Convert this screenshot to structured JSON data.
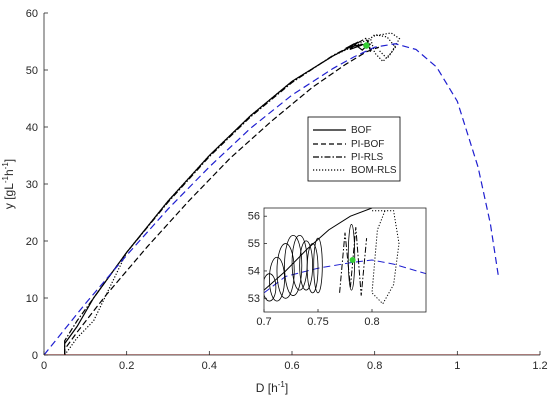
{
  "chart_data": [
    {
      "type": "line",
      "role": "main",
      "xlabel": "D [h",
      "xlabel_sup": "-1",
      "xlabel_end": "]",
      "ylabel_parts": [
        "y [gL",
        "-1",
        "h",
        "-1",
        "]"
      ],
      "xlim": [
        0,
        1.2
      ],
      "ylim": [
        0,
        60
      ],
      "xticks": [
        0,
        0.2,
        0.4,
        0.6,
        0.8,
        1,
        1.2
      ],
      "xtick_labels": [
        "0",
        "0.2",
        "0.4",
        "0.6",
        "0.8",
        "1",
        "1.2"
      ],
      "yticks": [
        0,
        10,
        20,
        30,
        40,
        50,
        60
      ],
      "ytick_labels": [
        "0",
        "10",
        "20",
        "30",
        "40",
        "50",
        "60"
      ],
      "grid": false,
      "legend_position": "center-right",
      "legend": [
        "BOF",
        "PI-BOF",
        "PI-RLS",
        "BOM-RLS"
      ],
      "series": [
        {
          "name": "BOF",
          "style": "solid",
          "color": "#000000",
          "points": [
            [
              0.05,
              0
            ],
            [
              0.05,
              2
            ],
            [
              0.08,
              5
            ],
            [
              0.12,
              10
            ],
            [
              0.15,
              13
            ],
            [
              0.2,
              18
            ],
            [
              0.3,
              27
            ],
            [
              0.4,
              35
            ],
            [
              0.5,
              42
            ],
            [
              0.6,
              48
            ],
            [
              0.7,
              52.5
            ],
            [
              0.74,
              54
            ],
            [
              0.77,
              54.5
            ],
            [
              0.78,
              54.2
            ],
            [
              0.77,
              53.5
            ],
            [
              0.75,
              54.6
            ],
            [
              0.73,
              53.8
            ],
            [
              0.76,
              54.9
            ],
            [
              0.74,
              53.6
            ],
            [
              0.77,
              54.4
            ]
          ]
        },
        {
          "name": "PI-BOF",
          "style": "dashed",
          "color": "#000000",
          "points": [
            [
              0.05,
              0
            ],
            [
              0.05,
              1
            ],
            [
              0.08,
              4
            ],
            [
              0.15,
              10.5
            ],
            [
              0.25,
              19
            ],
            [
              0.35,
              27
            ],
            [
              0.45,
              34.5
            ],
            [
              0.55,
              41
            ],
            [
              0.65,
              47
            ],
            [
              0.73,
              51
            ],
            [
              0.78,
              53.2
            ],
            [
              0.81,
              54
            ],
            [
              0.8,
              53.6
            ]
          ]
        },
        {
          "name": "PI-RLS",
          "style": "dashdot",
          "color": "#000000",
          "points": [
            [
              0.05,
              0
            ],
            [
              0.05,
              2.5
            ],
            [
              0.08,
              6
            ],
            [
              0.14,
              12
            ],
            [
              0.2,
              18
            ],
            [
              0.3,
              26.8
            ],
            [
              0.4,
              34.8
            ],
            [
              0.5,
              41.8
            ],
            [
              0.6,
              47.8
            ],
            [
              0.7,
              52.6
            ],
            [
              0.76,
              54.8
            ],
            [
              0.78,
              55.6
            ],
            [
              0.79,
              53.2
            ],
            [
              0.785,
              55.2
            ],
            [
              0.78,
              53.8
            ],
            [
              0.79,
              54.6
            ]
          ]
        },
        {
          "name": "BOM-RLS",
          "style": "dotted",
          "color": "#000000",
          "points": [
            [
              0.05,
              0
            ],
            [
              0.08,
              3
            ],
            [
              0.12,
              6
            ],
            [
              0.16,
              12
            ],
            [
              0.2,
              18
            ],
            [
              0.3,
              27
            ],
            [
              0.4,
              35
            ],
            [
              0.5,
              42
            ],
            [
              0.6,
              48
            ],
            [
              0.7,
              52.5
            ],
            [
              0.76,
              54.5
            ],
            [
              0.8,
              56
            ],
            [
              0.84,
              56.5
            ],
            [
              0.86,
              55.5
            ],
            [
              0.84,
              53
            ],
            [
              0.82,
              51.5
            ],
            [
              0.8,
              53
            ],
            [
              0.79,
              55.5
            ],
            [
              0.8,
              56.2
            ],
            [
              0.83,
              55.8
            ],
            [
              0.85,
              54
            ],
            [
              0.83,
              52
            ],
            [
              0.81,
              53.5
            ]
          ]
        },
        {
          "name": "",
          "style": "longdash",
          "color": "#1f1fd0",
          "points": [
            [
              0,
              0
            ],
            [
              0.05,
              4.5
            ],
            [
              0.1,
              9
            ],
            [
              0.2,
              17.5
            ],
            [
              0.3,
              25.6
            ],
            [
              0.4,
              33
            ],
            [
              0.5,
              39.8
            ],
            [
              0.6,
              45.6
            ],
            [
              0.7,
              50.3
            ],
            [
              0.75,
              52.3
            ],
            [
              0.8,
              54
            ],
            [
              0.85,
              54.6
            ],
            [
              0.9,
              53.6
            ],
            [
              0.95,
              50.5
            ],
            [
              1,
              44.5
            ],
            [
              1.05,
              33
            ],
            [
              1.08,
              23
            ],
            [
              1.1,
              13.5
            ]
          ]
        },
        {
          "name": "",
          "style": "solid",
          "color": "#e0302a",
          "points": [
            [
              0,
              0
            ],
            [
              1.2,
              0
            ]
          ]
        }
      ],
      "markers": [
        {
          "x": 0.78,
          "y": 54.3,
          "color": "#33cc33"
        }
      ]
    },
    {
      "type": "line",
      "role": "inset",
      "xlim": [
        0.7,
        0.85
      ],
      "ylim": [
        52.5,
        56.3
      ],
      "xticks": [
        0.7,
        0.75,
        0.8
      ],
      "xtick_labels": [
        "0.7",
        "0.75",
        "0.8"
      ],
      "yticks": [
        53,
        54,
        55,
        56
      ],
      "ytick_labels": [
        "53",
        "54",
        "55",
        "56"
      ],
      "grid": false,
      "series": [
        {
          "name": "",
          "style": "longdash",
          "color": "#1f1fd0",
          "points": [
            [
              0.7,
              53.2
            ],
            [
              0.72,
              53.8
            ],
            [
              0.75,
              54.1
            ],
            [
              0.78,
              54.3
            ],
            [
              0.8,
              54.4
            ],
            [
              0.82,
              54.25
            ],
            [
              0.85,
              53.9
            ]
          ]
        },
        {
          "name": "",
          "style": "solid",
          "color": "#000000",
          "points": [
            [
              0.7,
              53.3
            ],
            [
              0.72,
              54.0
            ],
            [
              0.74,
              54.8
            ],
            [
              0.76,
              55.5
            ],
            [
              0.78,
              56.0
            ],
            [
              0.8,
              56.3
            ]
          ]
        },
        {
          "name": "",
          "style": "dotted",
          "color": "#000000",
          "points": [
            [
              0.8,
              56.2
            ],
            [
              0.82,
              56.2
            ],
            [
              0.825,
              55
            ],
            [
              0.82,
              53.5
            ],
            [
              0.81,
              52.8
            ],
            [
              0.8,
              53.2
            ],
            [
              0.805,
              55.5
            ],
            [
              0.812,
              56.2
            ]
          ]
        },
        {
          "name": "",
          "style": "dashdot",
          "color": "#000000",
          "points": [
            [
              0.77,
              53.2
            ],
            [
              0.775,
              55.4
            ],
            [
              0.78,
              53.4
            ],
            [
              0.785,
              55.6
            ],
            [
              0.79,
              53.1
            ],
            [
              0.795,
              55.2
            ]
          ]
        }
      ],
      "loops": [
        {
          "cx": 0.705,
          "cy": 53.4,
          "rx": 0.006,
          "ry": 0.5
        },
        {
          "cx": 0.712,
          "cy": 53.7,
          "rx": 0.007,
          "ry": 0.8
        },
        {
          "cx": 0.72,
          "cy": 54.0,
          "rx": 0.008,
          "ry": 1.0
        },
        {
          "cx": 0.727,
          "cy": 54.2,
          "rx": 0.008,
          "ry": 1.1
        },
        {
          "cx": 0.733,
          "cy": 54.3,
          "rx": 0.007,
          "ry": 1.0
        },
        {
          "cx": 0.739,
          "cy": 54.2,
          "rx": 0.006,
          "ry": 0.9
        },
        {
          "cx": 0.745,
          "cy": 54.1,
          "rx": 0.005,
          "ry": 0.9
        },
        {
          "cx": 0.75,
          "cy": 54.2,
          "rx": 0.004,
          "ry": 1.0
        },
        {
          "cx": 0.781,
          "cy": 54.5,
          "rx": 0.003,
          "ry": 1.2
        }
      ],
      "markers": [
        {
          "x": 0.782,
          "y": 54.4,
          "color": "#33cc33"
        }
      ]
    }
  ]
}
